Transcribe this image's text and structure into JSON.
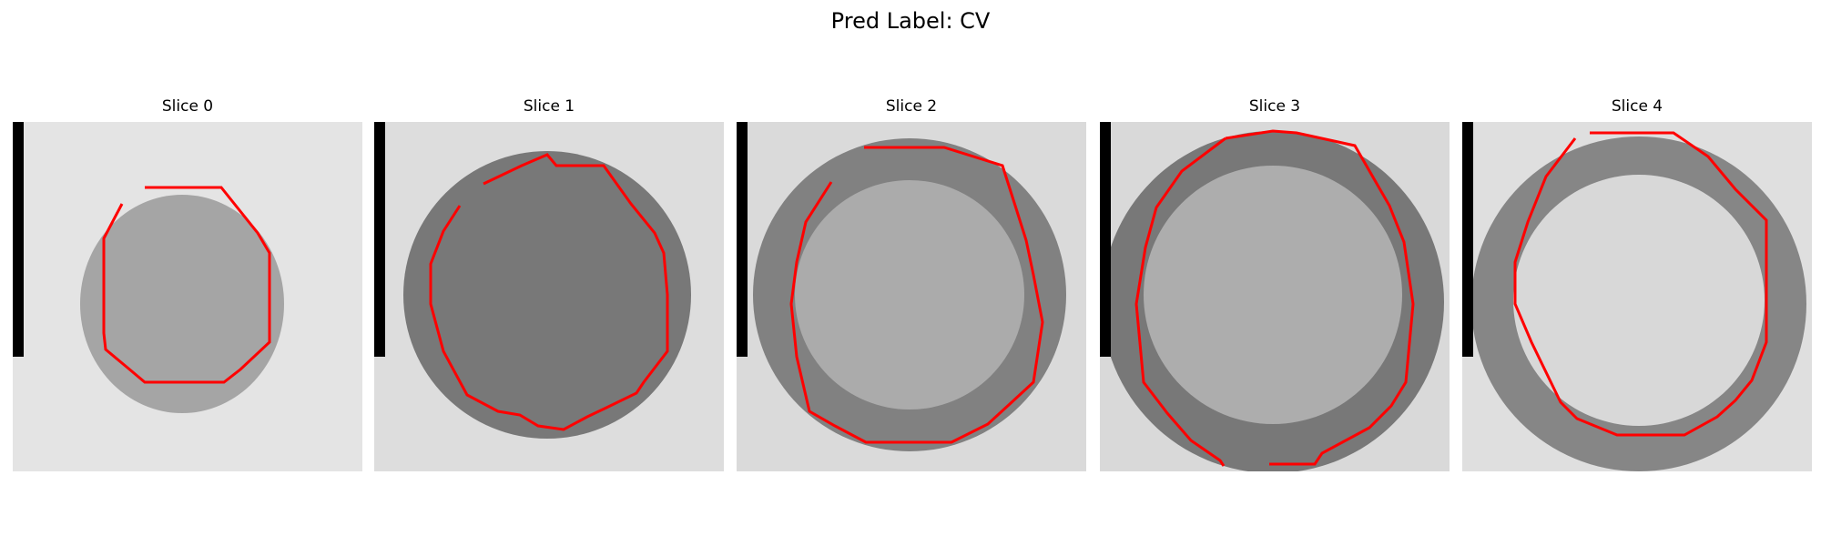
{
  "figure": {
    "title": "Pred Label: CV"
  },
  "panels": [
    {
      "title": "Slice 0"
    },
    {
      "title": "Slice 1"
    },
    {
      "title": "Slice 2"
    },
    {
      "title": "Slice 3"
    },
    {
      "title": "Slice 4"
    }
  ],
  "colors": {
    "contour": "#ff0000",
    "background": "#ffffff",
    "border_bar": "#000000"
  }
}
